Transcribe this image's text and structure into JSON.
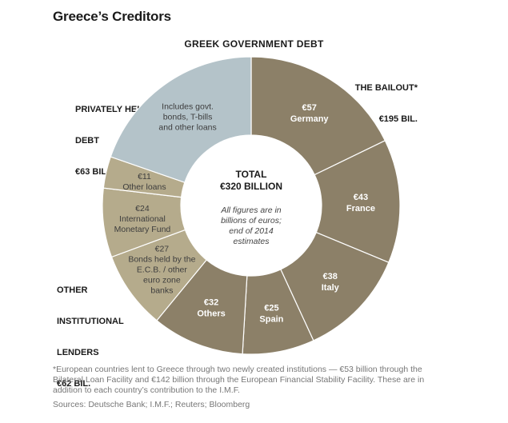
{
  "title": "Greece’s Creditors",
  "subtitle": "GREEK GOVERNMENT DEBT",
  "groups": {
    "bailout": {
      "line1": "THE BAILOUT*",
      "line2": "€195 BIL."
    },
    "private": {
      "line1": "PRIVATELY HELD",
      "line2": "DEBT",
      "line3": "€63 BIL."
    },
    "institutional": {
      "line1": "OTHER",
      "line2": "INSTITUTIONAL",
      "line3": "LENDERS",
      "line4": "€62 BIL."
    }
  },
  "center": {
    "total_label": "TOTAL",
    "total_value": "€320 BILLION",
    "note_lines": [
      "All figures are in",
      "billions of euros;",
      "end of 2014",
      "estimates"
    ]
  },
  "colors": {
    "bailout": "#8c8068",
    "private": "#b4c3c9",
    "institutional": "#b5ab8c",
    "label_light": "#ffffff",
    "label_dark": "#3d3d3d"
  },
  "chart_data": {
    "type": "donut",
    "title": "GREEK GOVERNMENT DEBT",
    "unit": "billions of euros",
    "total": 320,
    "slices": [
      {
        "name": "Germany",
        "value": 57,
        "value_label": "€57",
        "group": "bailout",
        "label_lines": [
          "Germany"
        ]
      },
      {
        "name": "France",
        "value": 43,
        "value_label": "€43",
        "group": "bailout",
        "label_lines": [
          "France"
        ]
      },
      {
        "name": "Italy",
        "value": 38,
        "value_label": "€38",
        "group": "bailout",
        "label_lines": [
          "Italy"
        ]
      },
      {
        "name": "Spain",
        "value": 25,
        "value_label": "€25",
        "group": "bailout",
        "label_lines": [
          "Spain"
        ]
      },
      {
        "name": "Others",
        "value": 32,
        "value_label": "€32",
        "group": "bailout",
        "label_lines": [
          "Others"
        ]
      },
      {
        "name": "Bonds held by the E.C.B. / other euro zone banks",
        "value": 27,
        "value_label": "€27",
        "group": "institutional",
        "label_lines": [
          "Bonds held by the",
          "E.C.B. / other",
          "euro zone",
          "banks"
        ]
      },
      {
        "name": "International Monetary Fund",
        "value": 24,
        "value_label": "€24",
        "group": "institutional",
        "label_lines": [
          "International",
          "Monetary Fund"
        ]
      },
      {
        "name": "Other loans",
        "value": 11,
        "value_label": "€11",
        "group": "institutional",
        "label_lines": [
          "Other loans"
        ]
      },
      {
        "name": "Includes govt. bonds, T-bills and other loans",
        "value": 63,
        "value_label": "",
        "group": "private",
        "label_lines": [
          "Includes govt.",
          "bonds, T-bills",
          "and other loans"
        ]
      }
    ]
  },
  "footnote": "*European countries lent to Greece through two newly created institutions — €53 billion through the Bilateral Loan Facility and €142 billion through the European Financial Stability Facility. These are in addition to each country’s contribution to the I.M.F.",
  "sources": "Sources: Deutsche Bank; I.M.F.; Reuters; Bloomberg"
}
